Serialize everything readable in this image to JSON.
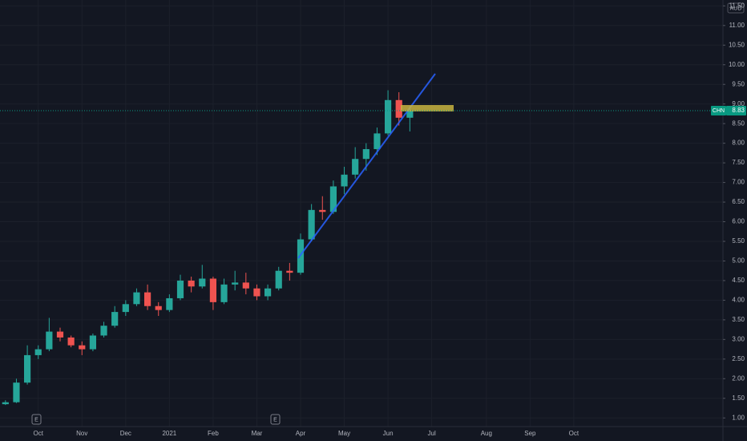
{
  "chart_data": {
    "type": "candlestick",
    "currency": "AUD",
    "categories": [
      null,
      null,
      null,
      "Oct",
      null,
      null,
      null,
      "Nov",
      null,
      null,
      null,
      "Dec",
      null,
      null,
      null,
      "2021",
      null,
      null,
      null,
      "Feb",
      null,
      null,
      null,
      "Mar",
      null,
      null,
      null,
      "Apr",
      null,
      null,
      null,
      "May",
      null,
      null,
      null,
      "Jun",
      null,
      null,
      null,
      "Jul",
      null,
      null,
      null,
      null,
      "Aug",
      null,
      null,
      null,
      "Sep",
      null,
      null,
      null,
      "Oct",
      null,
      null,
      null,
      null,
      null,
      null,
      null,
      null,
      null,
      null,
      null,
      null,
      null
    ],
    "series": {
      "up_color": "#26a69a",
      "down_color": "#ef5350",
      "open": [
        1.35,
        1.4,
        1.9,
        2.6,
        2.75,
        3.2,
        3.05,
        2.85,
        2.75,
        3.1,
        3.35,
        3.7,
        3.9,
        4.2,
        3.85,
        3.75,
        4.05,
        4.5,
        4.35,
        4.55,
        3.95,
        4.4,
        4.45,
        4.3,
        4.1,
        4.3,
        4.75,
        4.7,
        5.55,
        6.3,
        6.25,
        6.9,
        7.2,
        7.6,
        7.85,
        8.25,
        9.1,
        8.65,
        null,
        null,
        null,
        null,
        null,
        null,
        null,
        null,
        null,
        null,
        null,
        null,
        null,
        null,
        null,
        null,
        null,
        null,
        null,
        null,
        null,
        null,
        null,
        null,
        null,
        null,
        null,
        null
      ],
      "high": [
        1.45,
        2.0,
        2.85,
        2.85,
        3.55,
        3.3,
        3.1,
        2.95,
        3.15,
        3.45,
        3.85,
        4.0,
        4.3,
        4.4,
        3.95,
        4.15,
        4.65,
        4.6,
        4.9,
        4.6,
        4.55,
        4.75,
        4.7,
        4.4,
        4.4,
        4.85,
        4.95,
        5.7,
        6.45,
        6.65,
        7.05,
        7.4,
        7.9,
        8.0,
        8.4,
        9.35,
        9.3,
        8.95,
        null,
        null,
        null,
        null,
        null,
        null,
        null,
        null,
        null,
        null,
        null,
        null,
        null,
        null,
        null,
        null,
        null,
        null,
        null,
        null,
        null,
        null,
        null,
        null,
        null,
        null,
        null,
        null
      ],
      "low": [
        1.33,
        1.38,
        1.85,
        2.5,
        2.7,
        2.95,
        2.8,
        2.6,
        2.7,
        3.05,
        3.3,
        3.6,
        3.85,
        3.75,
        3.6,
        3.7,
        4.0,
        4.2,
        4.3,
        3.75,
        3.9,
        4.25,
        4.15,
        4.0,
        4.0,
        4.25,
        4.5,
        4.65,
        5.5,
        6.05,
        6.2,
        6.7,
        7.1,
        7.3,
        7.7,
        8.2,
        8.45,
        8.3,
        null,
        null,
        null,
        null,
        null,
        null,
        null,
        null,
        null,
        null,
        null,
        null,
        null,
        null,
        null,
        null,
        null,
        null,
        null,
        null,
        null,
        null,
        null,
        null,
        null,
        null,
        null,
        null
      ],
      "close": [
        1.4,
        1.9,
        2.6,
        2.75,
        3.2,
        3.05,
        2.85,
        2.75,
        3.1,
        3.35,
        3.7,
        3.9,
        4.2,
        3.85,
        3.75,
        4.05,
        4.5,
        4.35,
        4.55,
        3.95,
        4.4,
        4.45,
        4.3,
        4.1,
        4.3,
        4.75,
        4.7,
        5.55,
        6.3,
        6.25,
        6.9,
        7.2,
        7.6,
        7.85,
        8.25,
        9.1,
        8.65,
        8.83,
        null,
        null,
        null,
        null,
        null,
        null,
        null,
        null,
        null,
        null,
        null,
        null,
        null,
        null,
        null,
        null,
        null,
        null,
        null,
        null,
        null,
        null,
        null,
        null,
        null,
        null,
        null,
        null
      ]
    },
    "ylim": [
      0.78,
      11.65
    ],
    "yticks": [
      {
        "value": 1,
        "label": "1.00"
      },
      {
        "value": 1.5,
        "label": "1.50"
      },
      {
        "value": 2,
        "label": "2.00"
      },
      {
        "value": 2.5,
        "label": "2.50"
      },
      {
        "value": 3,
        "label": "3.00"
      },
      {
        "value": 3.5,
        "label": "3.50"
      },
      {
        "value": 4,
        "label": "4.00"
      },
      {
        "value": 4.5,
        "label": "4.50"
      },
      {
        "value": 5,
        "label": "5.00"
      },
      {
        "value": 5.5,
        "label": "5.50"
      },
      {
        "value": 6,
        "label": "6.00"
      },
      {
        "value": 6.5,
        "label": "6.50"
      },
      {
        "value": 7,
        "label": "7.00"
      },
      {
        "value": 7.5,
        "label": "7.50"
      },
      {
        "value": 8,
        "label": "8.00"
      },
      {
        "value": 8.5,
        "label": "8.50"
      },
      {
        "value": 9,
        "label": "9.00"
      },
      {
        "value": 9.5,
        "label": "9.50"
      },
      {
        "value": 10,
        "label": "10.00"
      },
      {
        "value": 10.5,
        "label": "10.50"
      },
      {
        "value": 11,
        "label": "11.00"
      },
      {
        "value": 11.5,
        "label": "11.50"
      }
    ],
    "grid": true,
    "last_price": {
      "symbol": "CHN",
      "value": 8.83,
      "color": "#089981"
    },
    "event_markers": [
      "E",
      "E"
    ]
  }
}
